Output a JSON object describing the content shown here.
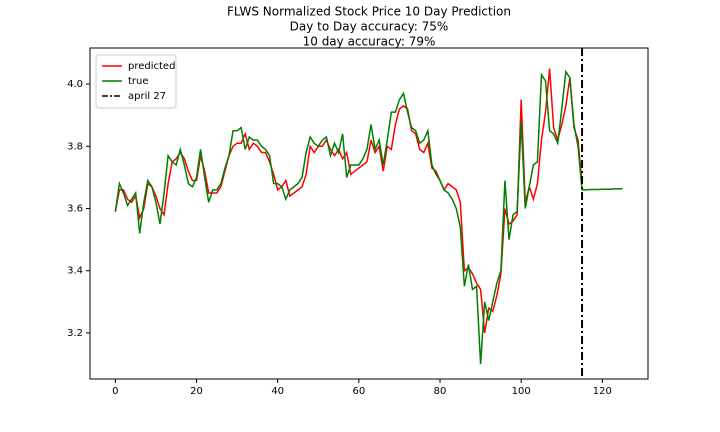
{
  "chart_data": {
    "type": "line",
    "title": "FLWS Normalized Stock Price 10 Day Prediction",
    "subtitle": [
      "Day to Day accuracy: 75%",
      "10 day accuracy: 79%"
    ],
    "x": [
      0,
      1,
      2,
      3,
      4,
      5,
      6,
      7,
      8,
      9,
      10,
      11,
      12,
      13,
      14,
      15,
      16,
      17,
      18,
      19,
      20,
      21,
      22,
      23,
      24,
      25,
      26,
      27,
      28,
      29,
      30,
      31,
      32,
      33,
      34,
      35,
      36,
      37,
      38,
      39,
      40,
      41,
      42,
      43,
      44,
      45,
      46,
      47,
      48,
      49,
      50,
      51,
      52,
      53,
      54,
      55,
      56,
      57,
      58,
      59,
      60,
      61,
      62,
      63,
      64,
      65,
      66,
      67,
      68,
      69,
      70,
      71,
      72,
      73,
      74,
      75,
      76,
      77,
      78,
      79,
      80,
      81,
      82,
      83,
      84,
      85,
      86,
      87,
      88,
      89,
      90,
      91,
      92,
      93,
      94,
      95,
      96,
      97,
      98,
      99,
      100,
      101,
      102,
      103,
      104,
      105,
      106,
      107,
      108,
      109,
      110,
      111,
      112,
      113,
      114,
      115,
      116,
      117,
      118,
      119,
      120,
      121,
      122,
      123,
      124,
      125
    ],
    "series": [
      {
        "name": "predicted",
        "color": "#ff0000",
        "values": [
          3.59,
          3.66,
          3.66,
          3.63,
          3.62,
          3.64,
          3.57,
          3.6,
          3.68,
          3.67,
          3.64,
          3.6,
          3.58,
          3.68,
          3.75,
          3.76,
          3.78,
          3.76,
          3.72,
          3.69,
          3.69,
          3.77,
          3.72,
          3.65,
          3.65,
          3.65,
          3.67,
          3.72,
          3.77,
          3.8,
          3.81,
          3.81,
          3.84,
          3.79,
          3.81,
          3.8,
          3.78,
          3.78,
          3.75,
          3.71,
          3.66,
          3.67,
          3.69,
          3.64,
          3.65,
          3.66,
          3.67,
          3.71,
          3.8,
          3.78,
          3.8,
          3.8,
          3.82,
          3.79,
          3.77,
          3.79,
          3.76,
          3.78,
          3.71,
          3.72,
          3.73,
          3.74,
          3.75,
          3.82,
          3.78,
          3.8,
          3.72,
          3.8,
          3.79,
          3.87,
          3.92,
          3.93,
          3.92,
          3.85,
          3.84,
          3.79,
          3.78,
          3.81,
          3.73,
          3.72,
          3.69,
          3.66,
          3.68,
          3.67,
          3.66,
          3.62,
          3.4,
          3.41,
          3.39,
          3.36,
          3.34,
          3.2,
          3.28,
          3.27,
          3.32,
          3.39,
          3.6,
          3.55,
          3.56,
          3.58,
          3.95,
          3.62,
          3.67,
          3.63,
          3.68,
          3.82,
          3.91,
          4.05,
          3.86,
          3.82,
          3.87,
          3.93,
          4.02,
          3.86,
          3.82,
          3.68,
          null,
          null,
          null,
          null,
          null,
          null,
          null,
          null,
          null,
          null
        ]
      },
      {
        "name": "true",
        "color": "#008000",
        "values": [
          3.59,
          3.68,
          3.65,
          3.61,
          3.63,
          3.65,
          3.52,
          3.62,
          3.69,
          3.67,
          3.62,
          3.55,
          3.65,
          3.77,
          3.75,
          3.74,
          3.79,
          3.74,
          3.68,
          3.67,
          3.7,
          3.79,
          3.7,
          3.62,
          3.66,
          3.66,
          3.68,
          3.73,
          3.77,
          3.85,
          3.85,
          3.86,
          3.79,
          3.83,
          3.82,
          3.82,
          3.8,
          3.79,
          3.77,
          3.68,
          3.68,
          3.67,
          3.63,
          3.66,
          3.67,
          3.68,
          3.7,
          3.78,
          3.83,
          3.81,
          3.8,
          3.82,
          3.83,
          3.77,
          3.81,
          3.78,
          3.84,
          3.7,
          3.74,
          3.74,
          3.74,
          3.76,
          3.79,
          3.87,
          3.79,
          3.82,
          3.74,
          3.82,
          3.91,
          3.91,
          3.95,
          3.97,
          3.91,
          3.86,
          3.85,
          3.81,
          3.82,
          3.85,
          3.74,
          3.71,
          3.69,
          3.66,
          3.65,
          3.63,
          3.6,
          3.54,
          3.35,
          3.42,
          3.34,
          3.35,
          3.1,
          3.3,
          3.24,
          3.3,
          3.36,
          3.4,
          3.69,
          3.5,
          3.58,
          3.59,
          3.88,
          3.6,
          3.67,
          3.74,
          3.75,
          4.03,
          4.01,
          3.85,
          3.84,
          3.81,
          3.92,
          4.04,
          4.02,
          3.87,
          3.8,
          3.66,
          3.66,
          3.661,
          3.661,
          3.661,
          3.662,
          3.662,
          3.662,
          3.663,
          3.663,
          3.664
        ]
      }
    ],
    "vlines": [
      {
        "name": "april 27",
        "x": 115,
        "color": "#000000"
      }
    ],
    "xlim": [
      -6.25,
      131.25
    ],
    "ylim": [
      3.052,
      4.116
    ],
    "xticks": [
      0,
      20,
      40,
      60,
      80,
      100,
      120
    ],
    "yticks": [
      3.2,
      3.4,
      3.6,
      3.8,
      {
        "value": 4.0,
        "label": "4.0"
      }
    ],
    "legend": "upper left"
  }
}
